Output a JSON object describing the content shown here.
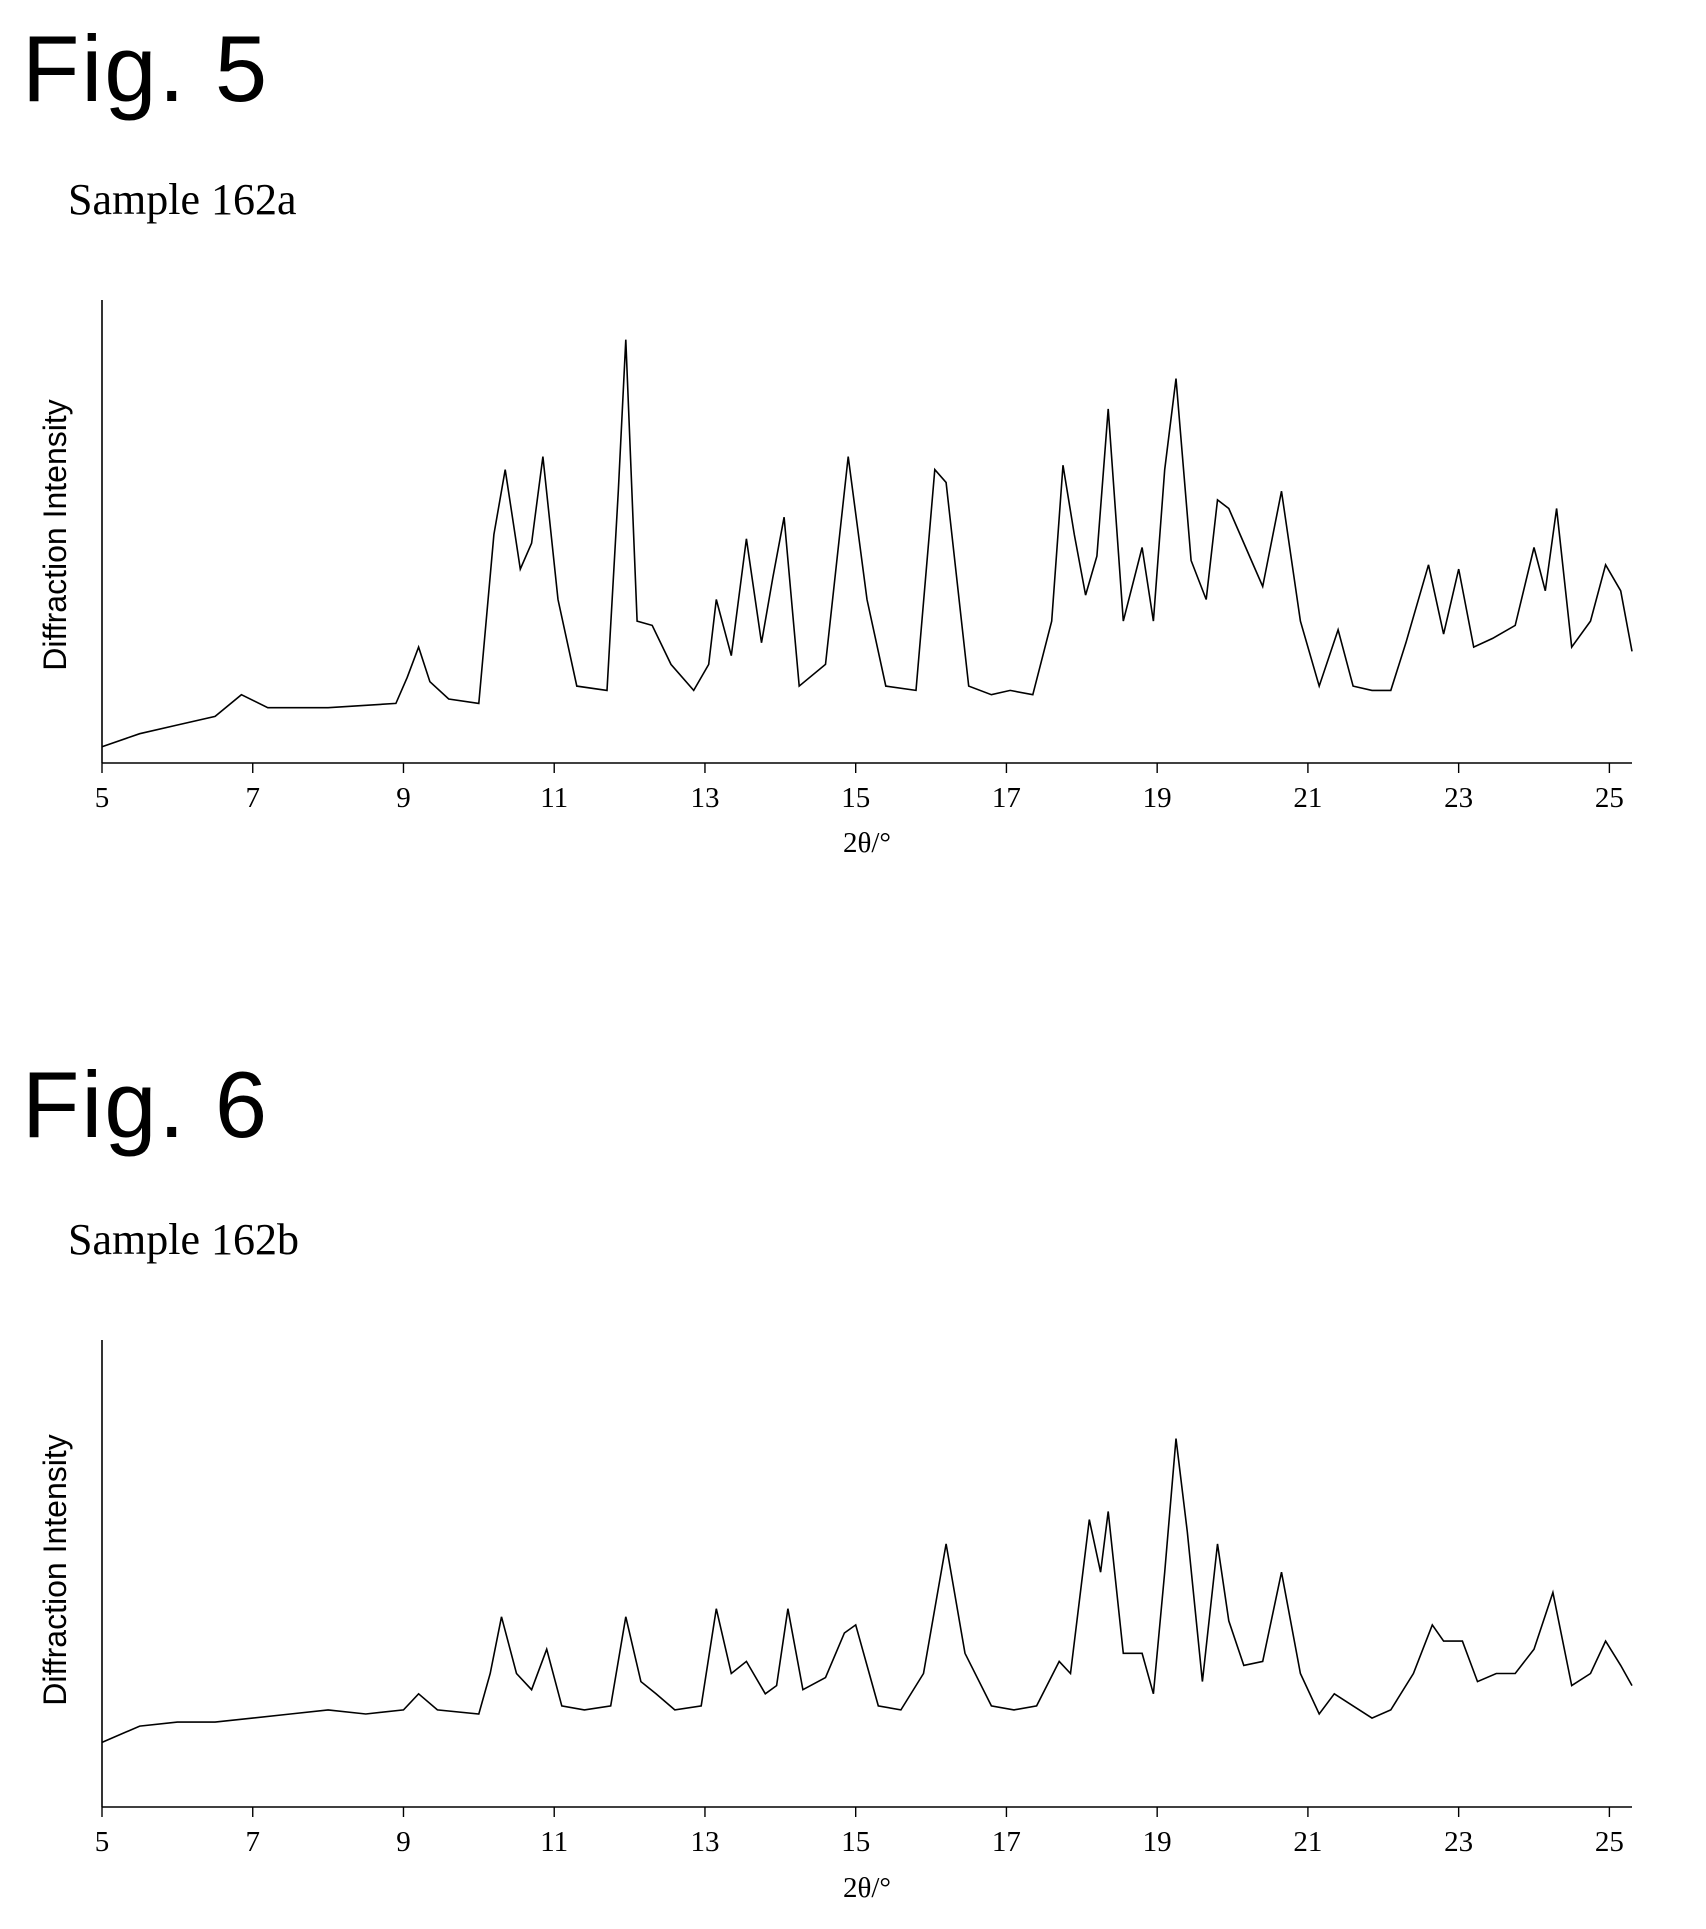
{
  "figures": [
    {
      "fig_label": "Fig. 5",
      "sample_label": "Sample 162a"
    },
    {
      "fig_label": "Fig. 6",
      "sample_label": "Sample 162b"
    }
  ],
  "chart_data": [
    {
      "type": "line",
      "xlabel": "2θ/°",
      "ylabel": "Diffraction Intensity",
      "xlim": [
        5,
        25.3
      ],
      "ylim": [
        0,
        100
      ],
      "xticks": [
        5,
        7,
        9,
        11,
        13,
        15,
        17,
        19,
        21,
        23,
        25
      ],
      "y_ticks_shown": false,
      "series": [
        {
          "x": [
            5.0,
            5.5,
            6.0,
            6.5,
            6.85,
            7.2,
            8.0,
            8.9,
            9.05,
            9.2,
            9.35,
            9.6,
            10.0,
            10.2,
            10.35,
            10.55,
            10.7,
            10.85,
            11.05,
            11.3,
            11.7,
            11.85,
            11.95,
            12.1,
            12.3,
            12.55,
            12.85,
            13.05,
            13.15,
            13.35,
            13.55,
            13.75,
            13.9,
            14.05,
            14.25,
            14.6,
            14.9,
            15.15,
            15.4,
            15.8,
            16.05,
            16.2,
            16.5,
            16.8,
            17.05,
            17.35,
            17.6,
            17.75,
            17.9,
            18.05,
            18.2,
            18.35,
            18.55,
            18.8,
            18.95,
            19.1,
            19.25,
            19.45,
            19.65,
            19.8,
            19.95,
            20.1,
            20.25,
            20.4,
            20.65,
            20.9,
            21.15,
            21.4,
            21.6,
            21.85,
            22.1,
            22.3,
            22.6,
            22.8,
            23.0,
            23.2,
            23.45,
            23.75,
            24.0,
            24.15,
            24.3,
            24.5,
            24.75,
            24.95,
            25.15,
            25.3
          ],
          "y": [
            1,
            4,
            6,
            8,
            13,
            10,
            10,
            11,
            17,
            24,
            16,
            12,
            11,
            50,
            65,
            42,
            48,
            68,
            35,
            15,
            14,
            60,
            95,
            30,
            29,
            20,
            14,
            20,
            35,
            22,
            49,
            25,
            40,
            54,
            15,
            20,
            68,
            35,
            15,
            14,
            65,
            62,
            15,
            13,
            14,
            13,
            30,
            66,
            50,
            36,
            45,
            79,
            30,
            47,
            30,
            65,
            86,
            44,
            35,
            58,
            56,
            50,
            44,
            38,
            60,
            30,
            15,
            28,
            15,
            14,
            14,
            25,
            43,
            27,
            42,
            24,
            26,
            29,
            47,
            37,
            56,
            24,
            30,
            43,
            37,
            23
          ]
        }
      ]
    },
    {
      "type": "line",
      "xlabel": "2θ/°",
      "ylabel": "Diffraction Intensity",
      "xlim": [
        5,
        25.3
      ],
      "ylim": [
        0,
        100
      ],
      "xticks": [
        5,
        7,
        9,
        11,
        13,
        15,
        17,
        19,
        21,
        23,
        25
      ],
      "y_ticks_shown": false,
      "series": [
        {
          "x": [
            5.0,
            5.5,
            6.0,
            6.5,
            7.0,
            7.5,
            8.0,
            8.5,
            9.0,
            9.2,
            9.45,
            10.0,
            10.15,
            10.3,
            10.5,
            10.7,
            10.9,
            11.1,
            11.4,
            11.75,
            11.95,
            12.15,
            12.35,
            12.6,
            12.95,
            13.15,
            13.35,
            13.55,
            13.8,
            13.95,
            14.1,
            14.3,
            14.6,
            14.85,
            15.0,
            15.3,
            15.6,
            15.9,
            16.2,
            16.45,
            16.8,
            17.1,
            17.4,
            17.7,
            17.85,
            18.1,
            18.25,
            18.35,
            18.55,
            18.8,
            18.95,
            19.1,
            19.25,
            19.4,
            19.6,
            19.8,
            19.95,
            20.15,
            20.4,
            20.65,
            20.9,
            21.15,
            21.35,
            21.6,
            21.85,
            22.1,
            22.4,
            22.65,
            22.8,
            23.05,
            23.25,
            23.5,
            23.75,
            24.0,
            24.25,
            24.5,
            24.75,
            24.95,
            25.15,
            25.3
          ],
          "y": [
            13,
            17,
            18,
            18,
            19,
            20,
            21,
            20,
            21,
            25,
            21,
            20,
            30,
            44,
            30,
            26,
            36,
            22,
            21,
            22,
            44,
            28,
            25,
            21,
            22,
            46,
            30,
            33,
            25,
            27,
            46,
            26,
            29,
            40,
            42,
            22,
            21,
            30,
            62,
            35,
            22,
            21,
            22,
            33,
            30,
            68,
            55,
            70,
            35,
            35,
            25,
            55,
            88,
            65,
            28,
            62,
            43,
            32,
            33,
            55,
            30,
            20,
            25,
            22,
            19,
            21,
            30,
            42,
            38,
            38,
            28,
            30,
            30,
            36,
            50,
            27,
            30,
            38,
            32,
            27
          ]
        }
      ]
    }
  ]
}
